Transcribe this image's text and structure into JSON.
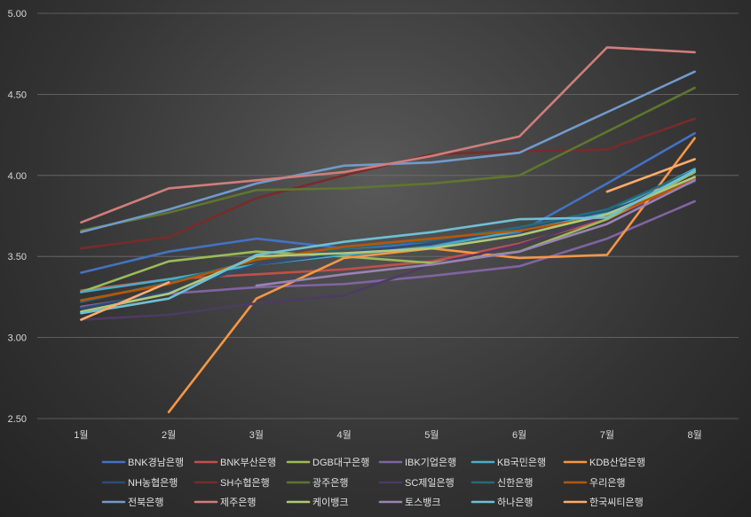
{
  "chart_data": {
    "type": "line",
    "title": "",
    "xlabel": "",
    "ylabel": "",
    "categories": [
      "1월",
      "2월",
      "3월",
      "4월",
      "5월",
      "6월",
      "7월",
      "8월"
    ],
    "ylim": [
      2.5,
      5.0
    ],
    "yticks": [
      "2.50",
      "3.00",
      "3.50",
      "4.00",
      "4.50",
      "5.00"
    ],
    "grid": true,
    "legend_position": "bottom",
    "series": [
      {
        "name": "BNK경남은행",
        "color": "#4472c4",
        "values": [
          3.4,
          3.53,
          3.61,
          3.55,
          3.58,
          3.65,
          3.95,
          4.26
        ]
      },
      {
        "name": "BNK부산은행",
        "color": "#c0504d",
        "values": [
          3.29,
          3.36,
          3.39,
          3.42,
          3.47,
          3.58,
          3.73,
          3.98
        ]
      },
      {
        "name": "DGB대구은행",
        "color": "#9bbb59",
        "values": [
          3.28,
          3.47,
          3.53,
          3.5,
          3.46,
          3.53,
          3.73,
          4.02
        ]
      },
      {
        "name": "IBK기업은행",
        "color": "#8064a2",
        "values": [
          3.19,
          3.27,
          3.31,
          3.33,
          3.38,
          3.44,
          3.61,
          3.84
        ]
      },
      {
        "name": "KB국민은행",
        "color": "#4bacc6",
        "values": [
          3.28,
          3.36,
          3.45,
          3.51,
          3.56,
          3.66,
          3.77,
          4.04
        ]
      },
      {
        "name": "KDB산업은행",
        "color": "#f79646",
        "values": [
          null,
          2.54,
          3.24,
          3.49,
          3.55,
          3.49,
          3.51,
          4.23
        ]
      },
      {
        "name": "NH농협은행",
        "color": "#2c4d75",
        "values": [
          3.18,
          3.28,
          3.45,
          3.52,
          3.58,
          3.67,
          3.78,
          3.96
        ]
      },
      {
        "name": "SH수협은행",
        "color": "#772c2a",
        "values": [
          3.55,
          3.62,
          3.86,
          4.0,
          4.13,
          4.15,
          4.16,
          4.35
        ]
      },
      {
        "name": "광주은행",
        "color": "#5f7530",
        "values": [
          3.66,
          3.77,
          3.91,
          3.92,
          3.95,
          4.0,
          4.27,
          4.54
        ]
      },
      {
        "name": "SC제일은행",
        "color": "#4d3b62",
        "values": [
          3.11,
          3.14,
          3.21,
          3.26,
          3.45,
          3.57,
          3.75,
          3.99
        ]
      },
      {
        "name": "신한은행",
        "color": "#276a7c",
        "values": [
          3.22,
          3.34,
          3.48,
          3.55,
          3.6,
          3.68,
          3.79,
          4.03
        ]
      },
      {
        "name": "우리은행",
        "color": "#b65708",
        "values": [
          3.23,
          3.33,
          3.48,
          3.56,
          3.61,
          3.66,
          3.75,
          3.97
        ]
      },
      {
        "name": "전북은행",
        "color": "#729aca",
        "values": [
          3.65,
          3.79,
          3.95,
          4.06,
          4.08,
          4.14,
          4.39,
          4.64
        ]
      },
      {
        "name": "제주은행",
        "color": "#d07e7c",
        "values": [
          3.71,
          3.92,
          3.97,
          4.02,
          4.12,
          4.24,
          4.79,
          4.76
        ]
      },
      {
        "name": "케이뱅크",
        "color": "#afc97a",
        "values": [
          3.16,
          3.27,
          3.5,
          3.52,
          3.55,
          3.63,
          3.76,
          3.99
        ]
      },
      {
        "name": "토스뱅크",
        "color": "#9983b5",
        "values": [
          null,
          null,
          3.32,
          3.39,
          3.45,
          3.53,
          3.7,
          3.97
        ]
      },
      {
        "name": "하나은행",
        "color": "#6fc0d5",
        "values": [
          3.15,
          3.24,
          3.51,
          3.59,
          3.65,
          3.73,
          3.74,
          4.03
        ]
      },
      {
        "name": "한국씨티은행",
        "color": "#fdac6b",
        "values": [
          3.11,
          3.34,
          null,
          null,
          null,
          null,
          3.9,
          4.1
        ]
      }
    ]
  }
}
